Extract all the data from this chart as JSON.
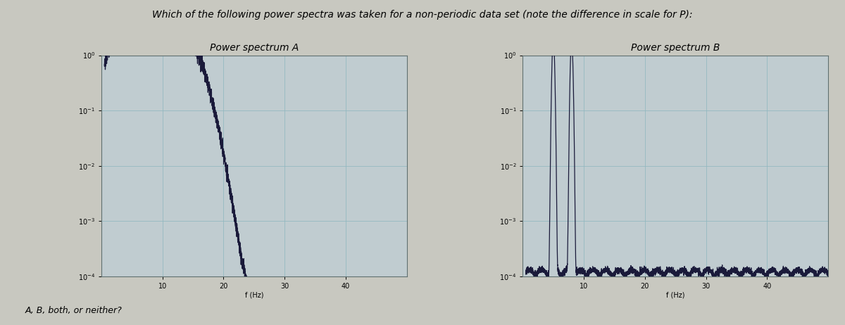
{
  "title": "Which of the following power spectra was taken for a non-periodic data set (note the difference in scale for P):",
  "title_A": "Power spectrum A",
  "title_B": "Power spectrum B",
  "xlabel": "f (Hz)",
  "footer": "A, B, both, or neither?",
  "bg_color": "#c8c8c0",
  "plot_bg": "#c0ccd0",
  "line_color": "#1a1a3a",
  "grid_color": "#90b8c0",
  "title_fontsize": 10,
  "label_fontsize": 7,
  "tick_fontsize": 7,
  "footer_fontsize": 9
}
